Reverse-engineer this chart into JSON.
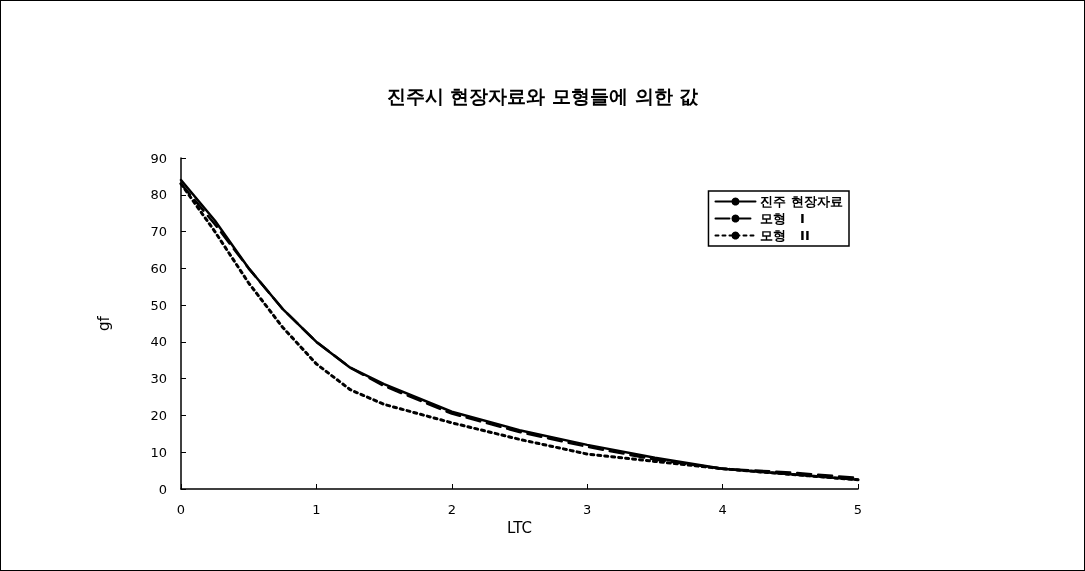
{
  "chart_data": {
    "type": "line",
    "title": "진주시 현장자료와 모형들에 의한 값",
    "xlabel": "LTC",
    "ylabel": "gf",
    "xlim": [
      0,
      5
    ],
    "xticks": [
      0,
      1,
      2,
      3,
      4,
      5
    ],
    "ylim": [
      0,
      90
    ],
    "yticks": [
      0,
      10,
      20,
      30,
      40,
      50,
      60,
      70,
      80,
      90
    ],
    "grid": false,
    "legend": "top right",
    "marker": "none",
    "x": [
      0,
      0.25,
      0.5,
      0.75,
      1,
      1.25,
      1.5,
      2,
      2.5,
      3,
      3.5,
      4,
      4.5,
      5
    ],
    "series": [
      {
        "name": "진주 현장자료",
        "color": "#000000",
        "line_style": "solid",
        "values": [
          84,
          73,
          60,
          49,
          40,
          33,
          28.5,
          21,
          16,
          12,
          8.5,
          5.5,
          4,
          2.5
        ]
      },
      {
        "name": "모형   I",
        "color": "#000000",
        "line_style": "dashed",
        "values": [
          83,
          72,
          60,
          49,
          40,
          33,
          28,
          20.5,
          15.5,
          11.5,
          8,
          5.5,
          4.5,
          3
        ]
      },
      {
        "name": "모형   II",
        "color": "#000000",
        "line_style": "dotted",
        "values": [
          83,
          70,
          56,
          44,
          34,
          27,
          23,
          18,
          13.5,
          9.5,
          7.5,
          5.5,
          4,
          2.5
        ]
      }
    ]
  }
}
